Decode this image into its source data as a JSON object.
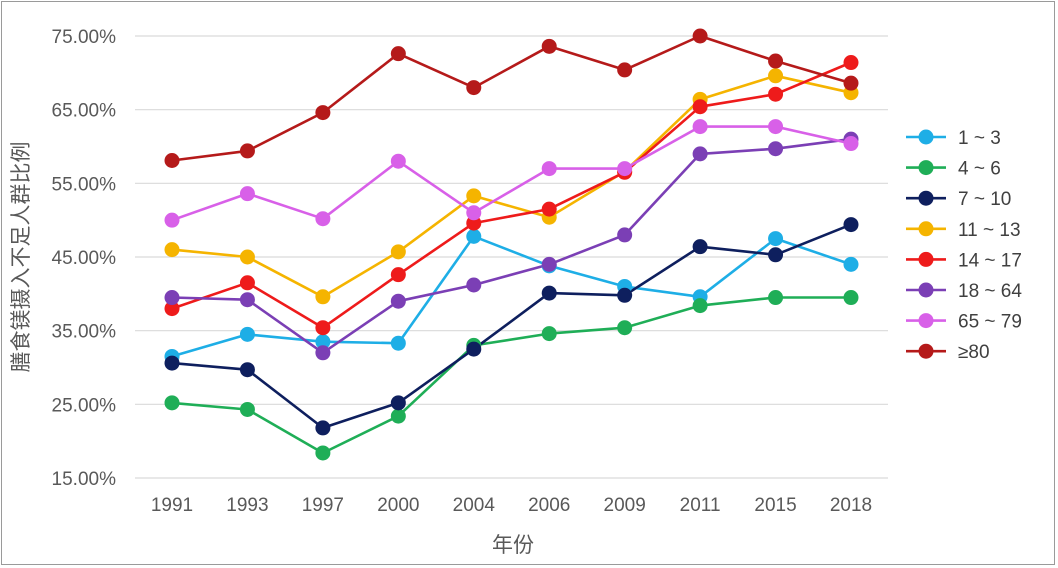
{
  "chart_data": {
    "type": "line",
    "title": "",
    "xlabel": "年份",
    "ylabel": "膳食镁摄入不足人群比例",
    "categories": [
      "1991",
      "1993",
      "1997",
      "2000",
      "2004",
      "2006",
      "2009",
      "2011",
      "2015",
      "2018"
    ],
    "ylim": [
      15,
      75
    ],
    "yticks": [
      "15.00%",
      "25.00%",
      "35.00%",
      "45.00%",
      "55.00%",
      "65.00%",
      "75.00%"
    ],
    "ytick_values": [
      15,
      25,
      35,
      45,
      55,
      65,
      75
    ],
    "grid": true,
    "legend_position": "right",
    "series": [
      {
        "name": "1 ~ 3",
        "color": "#1eaee6",
        "values": [
          31.5,
          34.5,
          33.5,
          33.3,
          47.8,
          43.8,
          41.0,
          39.6,
          47.5,
          44.0
        ]
      },
      {
        "name": "4 ~ 6",
        "color": "#1fae57",
        "values": [
          25.2,
          24.3,
          18.4,
          23.4,
          33.0,
          34.6,
          35.4,
          38.4,
          39.5,
          39.5
        ]
      },
      {
        "name": "7 ~ 10",
        "color": "#0e1f5e",
        "values": [
          30.6,
          29.7,
          21.8,
          25.2,
          32.5,
          40.1,
          39.8,
          46.4,
          45.3,
          49.4
        ]
      },
      {
        "name": "11 ~ 13",
        "color": "#f5b400",
        "values": [
          46.0,
          45.0,
          39.6,
          45.7,
          53.3,
          50.4,
          56.6,
          66.4,
          69.6,
          67.3
        ]
      },
      {
        "name": "14 ~ 17",
        "color": "#ee1b1b",
        "values": [
          38.0,
          41.5,
          35.4,
          42.6,
          49.6,
          51.5,
          56.5,
          65.4,
          67.1,
          71.4
        ]
      },
      {
        "name": "18 ~ 64",
        "color": "#7b3fb5",
        "values": [
          39.5,
          39.2,
          32.0,
          39.0,
          41.2,
          44.0,
          48.0,
          59.0,
          59.7,
          61.0
        ]
      },
      {
        "name": "65 ~ 79",
        "color": "#d860e8",
        "values": [
          50.0,
          53.6,
          50.2,
          58.0,
          51.0,
          57.0,
          57.0,
          62.7,
          62.7,
          60.4
        ]
      },
      {
        "name": "≥80",
        "color": "#b51a1a",
        "values": [
          58.1,
          59.4,
          64.6,
          72.6,
          68.0,
          73.6,
          70.4,
          75.0,
          71.6,
          68.6
        ]
      }
    ]
  }
}
